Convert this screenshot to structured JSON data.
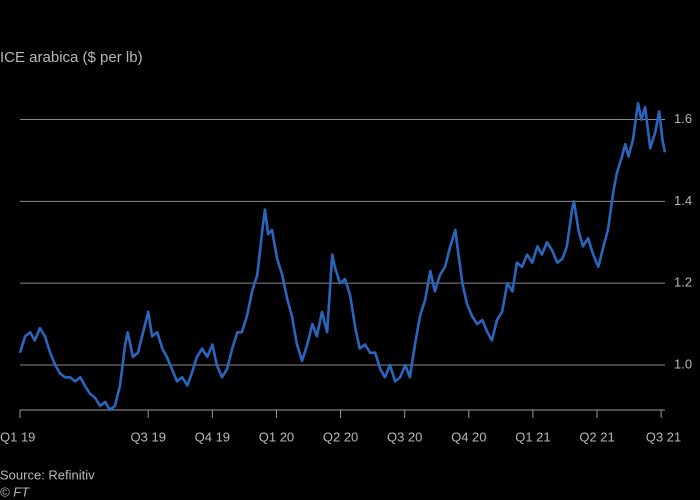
{
  "chart_data": {
    "type": "line",
    "title": "ICE arabica ($ per lb)",
    "source": "Source: Refinitiv",
    "credit": "© FT",
    "color": "#2a66bd",
    "grid": true,
    "xlim": [
      0,
      10.06
    ],
    "ylim": [
      0.89,
      1.66
    ],
    "yticks": [
      {
        "value": 1,
        "label": "1.0"
      },
      1.2,
      1.4,
      1.6
    ],
    "xticks": [
      {
        "value": 0,
        "label": "Q1 19"
      },
      {
        "value": 2,
        "label": "Q3 19"
      },
      {
        "value": 3,
        "label": "Q4 19"
      },
      {
        "value": 4,
        "label": "Q1 20"
      },
      {
        "value": 5,
        "label": "Q2 20"
      },
      {
        "value": 6,
        "label": "Q3 20"
      },
      {
        "value": 7,
        "label": "Q4 20"
      },
      {
        "value": 8,
        "label": "Q1 21"
      },
      {
        "value": 9,
        "label": "Q2 21"
      },
      {
        "value": 10,
        "label": "Q3 21"
      }
    ],
    "x": [
      0,
      0.08,
      0.16,
      0.23,
      0.31,
      0.39,
      0.47,
      0.55,
      0.62,
      0.7,
      0.78,
      0.86,
      0.94,
      1.01,
      1.09,
      1.17,
      1.25,
      1.33,
      1.4,
      1.48,
      1.56,
      1.64,
      1.68,
      1.76,
      1.84,
      1.92,
      2,
      2.06,
      2.14,
      2.22,
      2.29,
      2.37,
      2.45,
      2.53,
      2.61,
      2.68,
      2.76,
      2.84,
      2.92,
      3,
      3.07,
      3.15,
      3.23,
      3.31,
      3.39,
      3.46,
      3.54,
      3.62,
      3.7,
      3.78,
      3.82,
      3.87,
      3.93,
      4.01,
      4.09,
      4.17,
      4.24,
      4.32,
      4.4,
      4.48,
      4.56,
      4.63,
      4.71,
      4.79,
      4.87,
      4.91,
      4.99,
      5.07,
      5.15,
      5.23,
      5.3,
      5.38,
      5.46,
      5.54,
      5.62,
      5.69,
      5.77,
      5.85,
      5.93,
      6.01,
      6.08,
      6.16,
      6.24,
      6.32,
      6.4,
      6.47,
      6.55,
      6.63,
      6.71,
      6.79,
      6.83,
      6.9,
      6.97,
      7.05,
      7.13,
      7.21,
      7.29,
      7.36,
      7.44,
      7.52,
      7.6,
      7.68,
      7.75,
      7.83,
      7.91,
      7.99,
      8.07,
      8.14,
      8.22,
      8.3,
      8.38,
      8.46,
      8.53,
      8.61,
      8.64,
      8.71,
      8.78,
      8.86,
      8.94,
      9.02,
      9.1,
      9.17,
      9.25,
      9.31,
      9.39,
      9.44,
      9.49,
      9.56,
      9.64,
      9.69,
      9.75,
      9.83,
      9.91,
      9.97,
      10.02,
      10.06
    ],
    "values": [
      1.03,
      1.07,
      1.08,
      1.06,
      1.09,
      1.07,
      1.03,
      1.0,
      0.98,
      0.97,
      0.97,
      0.96,
      0.97,
      0.95,
      0.93,
      0.92,
      0.9,
      0.91,
      0.89,
      0.9,
      0.95,
      1.05,
      1.08,
      1.02,
      1.03,
      1.08,
      1.13,
      1.07,
      1.08,
      1.04,
      1.02,
      0.99,
      0.96,
      0.97,
      0.95,
      0.98,
      1.02,
      1.04,
      1.02,
      1.05,
      1.0,
      0.97,
      0.99,
      1.04,
      1.08,
      1.08,
      1.12,
      1.18,
      1.22,
      1.33,
      1.38,
      1.32,
      1.33,
      1.26,
      1.22,
      1.16,
      1.12,
      1.05,
      1.01,
      1.05,
      1.1,
      1.07,
      1.13,
      1.08,
      1.27,
      1.24,
      1.2,
      1.21,
      1.17,
      1.09,
      1.04,
      1.05,
      1.03,
      1.03,
      0.99,
      0.97,
      1.0,
      0.96,
      0.97,
      1.0,
      0.97,
      1.05,
      1.12,
      1.16,
      1.23,
      1.18,
      1.22,
      1.24,
      1.29,
      1.33,
      1.28,
      1.2,
      1.15,
      1.12,
      1.1,
      1.11,
      1.08,
      1.06,
      1.11,
      1.13,
      1.2,
      1.18,
      1.25,
      1.24,
      1.27,
      1.25,
      1.29,
      1.27,
      1.3,
      1.28,
      1.25,
      1.26,
      1.29,
      1.38,
      1.4,
      1.33,
      1.29,
      1.31,
      1.27,
      1.24,
      1.29,
      1.33,
      1.42,
      1.47,
      1.51,
      1.54,
      1.51,
      1.55,
      1.64,
      1.6,
      1.63,
      1.53,
      1.57,
      1.62,
      1.55,
      1.52
    ]
  }
}
